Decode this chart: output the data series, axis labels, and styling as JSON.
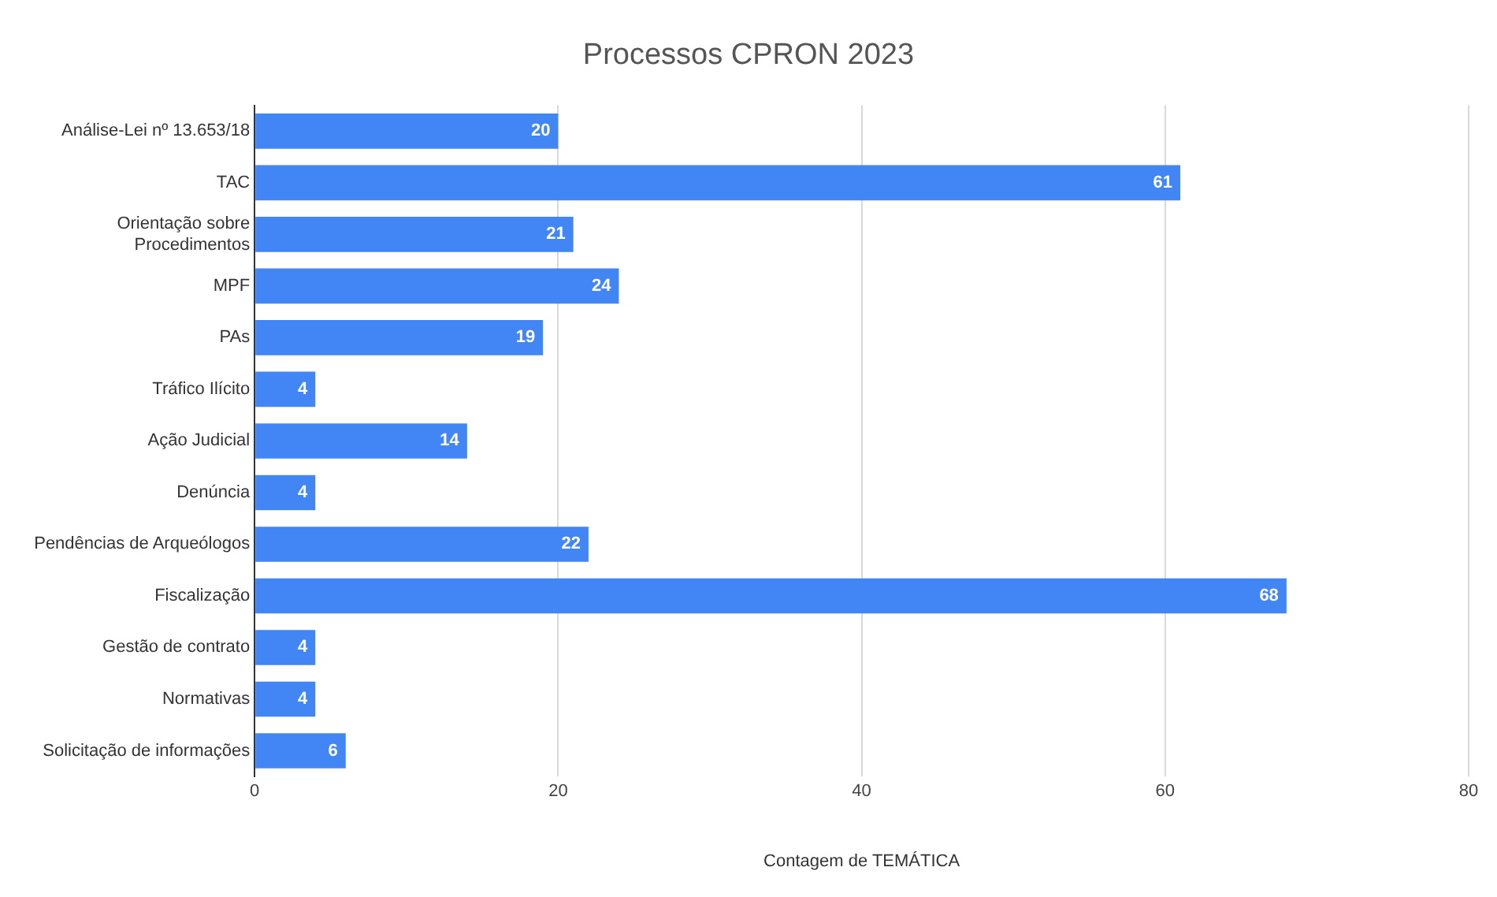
{
  "chart_data": {
    "type": "bar",
    "orientation": "horizontal",
    "title": "Processos CPRON 2023",
    "xlabel": "Contagem de TEMÁTICA",
    "categories": [
      "Análise-Lei nº 13.653/18",
      "TAC",
      "Orientação sobre Procedimentos",
      "MPF",
      "PAs",
      "Tráfico Ilícito",
      "Ação Judicial",
      "Denúncia",
      "Pendências de Arqueólogos",
      "Fiscalização",
      "Gestão de contrato",
      "Normativas",
      "Solicitação de informações"
    ],
    "values": [
      20,
      61,
      21,
      24,
      19,
      4,
      14,
      4,
      22,
      68,
      4,
      4,
      6
    ],
    "color": "#4285f4",
    "xlim": [
      0,
      80
    ],
    "xticks": [
      0,
      20,
      40,
      60,
      80
    ],
    "grid": "x",
    "data_labels": true,
    "legend": false
  }
}
